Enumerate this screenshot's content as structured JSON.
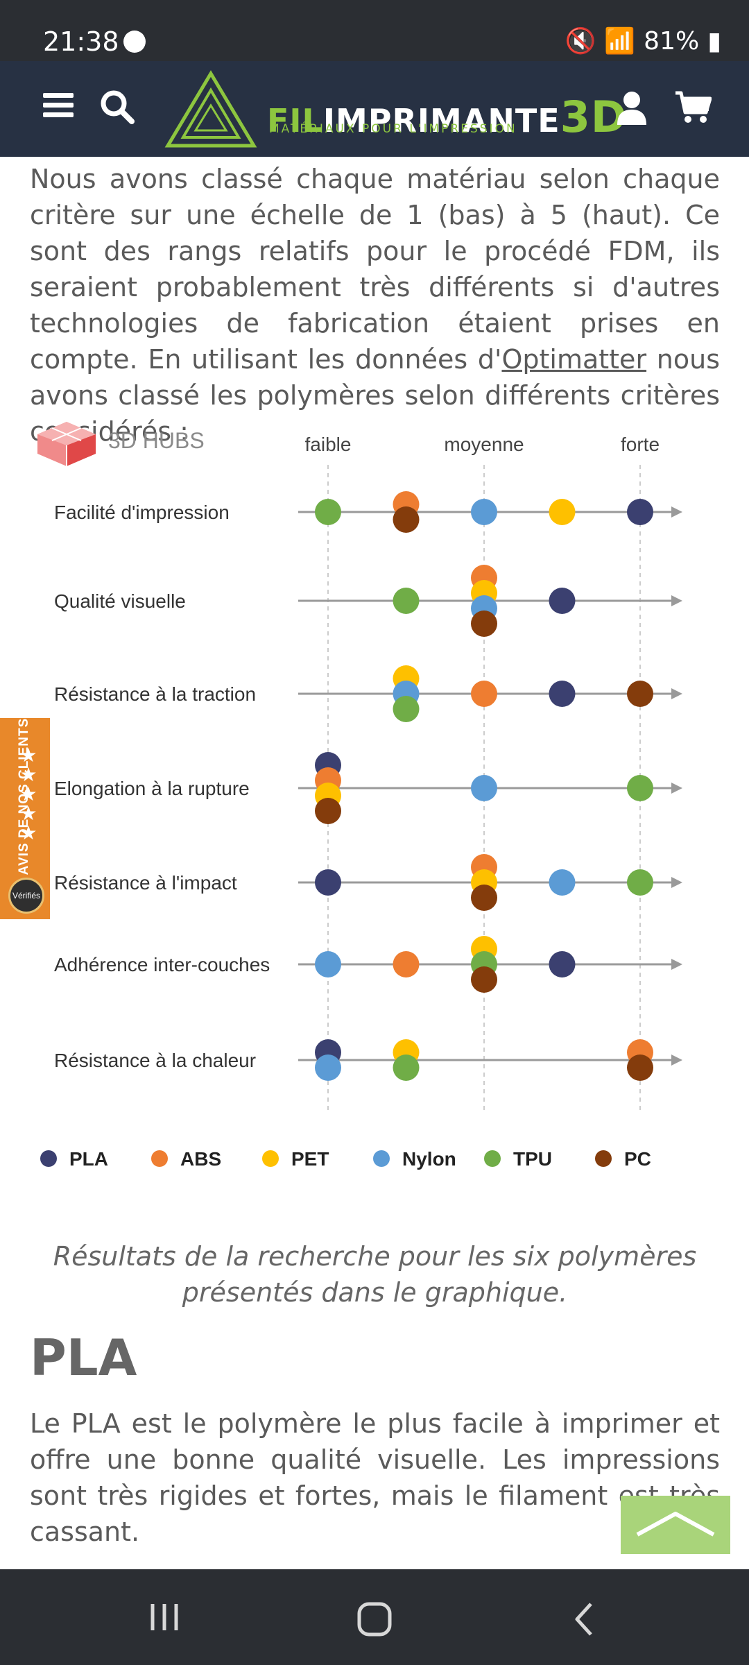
{
  "status": {
    "time": "21:38",
    "battery": "81%"
  },
  "header": {
    "logo_fil": "FIL",
    "logo_imprimante": "IMPRIMANTE",
    "logo_3d": "3D",
    "logo_sub": "MATÉRIAUX POUR L'IMPRESSION"
  },
  "intro": {
    "part1": "Nous avons classé chaque matériau selon chaque critère sur une échelle de 1 (bas) à 5 (haut). Ce sont des rangs relatifs pour le procédé FDM, ils seraient probablement très différents si d'autres technologies de fabrication étaient prises en compte. En utilisant les données d'",
    "link": "Optimatter",
    "part2": " nous avons classé les polymères selon différents critères considérés :"
  },
  "chart_brand": "3D HUBS",
  "chart_data": {
    "type": "scatter",
    "scale_labels": [
      "faible",
      "moyenne",
      "forte"
    ],
    "xlim": [
      1,
      5
    ],
    "criteria": [
      "Facilité d'impression",
      "Qualité visuelle",
      "Résistance à la traction",
      "Elongation à la rupture",
      "Résistance à l'impact",
      "Adhérence inter-couches",
      "Résistance à la chaleur"
    ],
    "series": [
      {
        "name": "PLA",
        "color": "#3b4070",
        "values": [
          5,
          4,
          4,
          1,
          1,
          4,
          1
        ]
      },
      {
        "name": "ABS",
        "color": "#ee7d31",
        "values": [
          2,
          3,
          3,
          1,
          3,
          2,
          5
        ]
      },
      {
        "name": "PET",
        "color": "#fec000",
        "values": [
          4,
          3,
          2,
          1,
          3,
          3,
          2
        ]
      },
      {
        "name": "Nylon",
        "color": "#5b9bd5",
        "values": [
          3,
          3,
          2,
          3,
          4,
          1,
          1
        ]
      },
      {
        "name": "TPU",
        "color": "#70ad47",
        "values": [
          1,
          2,
          2,
          5,
          5,
          3,
          2
        ]
      },
      {
        "name": "PC",
        "color": "#843c0c",
        "values": [
          2,
          3,
          5,
          1,
          3,
          3,
          5
        ]
      }
    ]
  },
  "caption": "Résultats de la recherche pour les six polymères présentés dans le graphique.",
  "section_title": "PLA",
  "section_text": "Le PLA est le polymère le plus facile à imprimer et offre une bonne qualité visuelle. Les impressions sont très rigides et fortes, mais le filament est très cassant.",
  "avis_widget": {
    "text": "AVIS DE NOS CLIENTS",
    "badge": "Vérifiés"
  }
}
